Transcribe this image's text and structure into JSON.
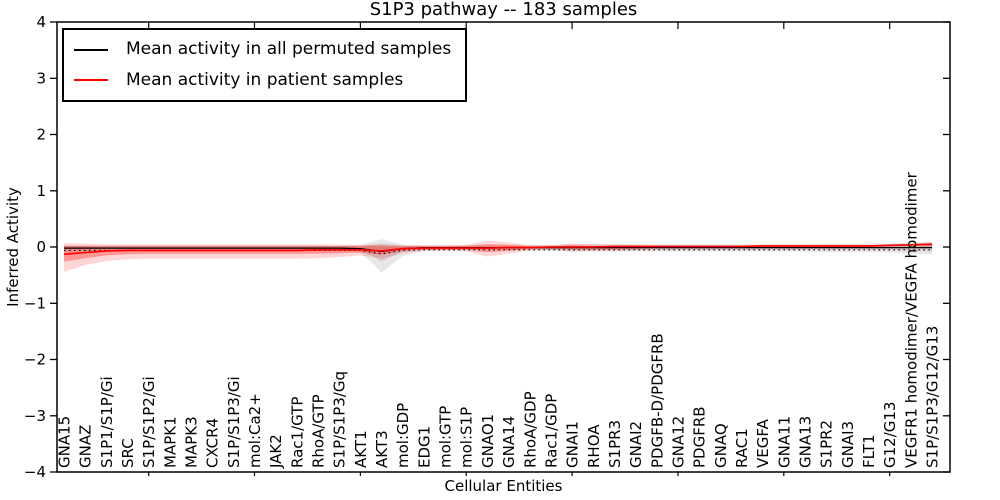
{
  "chart_data": {
    "type": "line",
    "title": "S1P3 pathway -- 183 samples",
    "xlabel": "Cellular Entities",
    "ylabel": "Inferred Activity",
    "ylim": [
      -4,
      4
    ],
    "yticks": [
      -4,
      -3,
      -2,
      -1,
      0,
      1,
      2,
      3,
      4
    ],
    "grid": false,
    "legend_position": "upper left",
    "legend": [
      "Mean activity in all permuted samples",
      "Mean activity in patient samples"
    ],
    "colors": {
      "permuted_line": "#000000",
      "patient_line": "#ff0000",
      "permuted_band": "#888888",
      "patient_band": "#ff0000"
    },
    "xtick_marks_every": 5,
    "categories": [
      "GNA15",
      "GNAZ",
      "S1P1/S1P/Gi",
      "SRC",
      "S1P/S1P2/Gi",
      "MAPK1",
      "MAPK3",
      "CXCR4",
      "S1P/S1P3/Gi",
      "mol:Ca2+",
      "JAK2",
      "Rac1/GTP",
      "RhoA/GTP",
      "S1P/S1P3/Gq",
      "AKT1",
      "AKT3",
      "mol:GDP",
      "EDG1",
      "mol:GTP",
      "mol:S1P",
      "GNAO1",
      "GNA14",
      "RhoA/GDP",
      "Rac1/GDP",
      "GNAI1",
      "RHOA",
      "S1PR3",
      "GNAI2",
      "PDGFB-D/PDGFRB",
      "GNA12",
      "PDGFRB",
      "GNAQ",
      "RAC1",
      "VEGFA",
      "GNA11",
      "GNA13",
      "S1PR2",
      "GNAI3",
      "FLT1",
      "G12/G13",
      "VEGFR1 homodimer/VEGFA homodimer",
      "S1P/S1P3/G12/G13"
    ],
    "series": [
      {
        "name": "Mean activity in all permuted samples",
        "color": "#000000",
        "style": "solid",
        "values": [
          -0.02,
          -0.02,
          -0.02,
          -0.02,
          -0.02,
          -0.02,
          -0.02,
          -0.02,
          -0.02,
          -0.02,
          -0.02,
          -0.02,
          -0.02,
          -0.02,
          -0.03,
          -0.08,
          -0.03,
          -0.01,
          -0.01,
          -0.01,
          -0.01,
          -0.01,
          -0.01,
          -0.01,
          -0.01,
          -0.01,
          -0.01,
          -0.01,
          -0.01,
          -0.01,
          -0.01,
          -0.01,
          -0.01,
          -0.01,
          -0.01,
          -0.01,
          -0.01,
          -0.01,
          -0.01,
          -0.01,
          -0.01,
          -0.01
        ]
      },
      {
        "name": "permuted dotted reference",
        "color": "#000000",
        "style": "dotted",
        "values": [
          -0.06,
          -0.06,
          -0.06,
          -0.06,
          -0.06,
          -0.06,
          -0.06,
          -0.06,
          -0.06,
          -0.06,
          -0.06,
          -0.06,
          -0.06,
          -0.06,
          -0.06,
          -0.12,
          -0.06,
          -0.05,
          -0.05,
          -0.05,
          -0.05,
          -0.05,
          -0.05,
          -0.05,
          -0.05,
          -0.05,
          -0.05,
          -0.05,
          -0.05,
          -0.05,
          -0.05,
          -0.05,
          -0.05,
          -0.05,
          -0.05,
          -0.05,
          -0.05,
          -0.05,
          -0.05,
          -0.05,
          -0.05,
          -0.05
        ]
      },
      {
        "name": "Mean activity in patient samples",
        "color": "#ff0000",
        "style": "solid",
        "values": [
          -0.13,
          -0.1,
          -0.07,
          -0.06,
          -0.06,
          -0.06,
          -0.06,
          -0.06,
          -0.06,
          -0.06,
          -0.06,
          -0.06,
          -0.05,
          -0.05,
          -0.05,
          -0.07,
          -0.03,
          -0.02,
          -0.02,
          -0.02,
          -0.02,
          -0.01,
          -0.01,
          0,
          0,
          0,
          0.01,
          0.01,
          0.01,
          0.01,
          0.01,
          0.01,
          0.01,
          0.02,
          0.02,
          0.02,
          0.02,
          0.02,
          0.02,
          0.03,
          0.04,
          0.05
        ]
      }
    ],
    "bands": [
      {
        "name": "permuted outer band",
        "color": "#888888",
        "opacity": 0.2,
        "upper": [
          0.03,
          0.02,
          0.02,
          0.02,
          0.02,
          0.02,
          0.02,
          0.02,
          0.02,
          0.02,
          0.02,
          0.02,
          0.02,
          0.02,
          0.03,
          0.14,
          0.04,
          0.03,
          0.03,
          0.03,
          0.03,
          0.03,
          0.04,
          0.04,
          0.05,
          0.05,
          0.05,
          0.05,
          0.05,
          0.05,
          0.05,
          0.05,
          0.05,
          0.05,
          0.05,
          0.05,
          0.06,
          0.06,
          0.06,
          0.07,
          0.08,
          0.09
        ],
        "lower": [
          -0.1,
          -0.08,
          -0.07,
          -0.07,
          -0.07,
          -0.07,
          -0.07,
          -0.07,
          -0.07,
          -0.07,
          -0.07,
          -0.07,
          -0.07,
          -0.07,
          -0.09,
          -0.45,
          -0.16,
          -0.07,
          -0.06,
          -0.06,
          -0.06,
          -0.06,
          -0.07,
          -0.07,
          -0.08,
          -0.08,
          -0.08,
          -0.08,
          -0.08,
          -0.08,
          -0.08,
          -0.08,
          -0.08,
          -0.08,
          -0.08,
          -0.08,
          -0.09,
          -0.09,
          -0.09,
          -0.1,
          -0.12,
          -0.13
        ]
      },
      {
        "name": "permuted inner band",
        "color": "#888888",
        "opacity": 0.22,
        "upper": [
          0.01,
          0.01,
          0.01,
          0.01,
          0.01,
          0.01,
          0.01,
          0.01,
          0.01,
          0.01,
          0.01,
          0.01,
          0.01,
          0.01,
          0.01,
          0.06,
          0.02,
          0.01,
          0.01,
          0.01,
          0.01,
          0.01,
          0.02,
          0.02,
          0.02,
          0.02,
          0.02,
          0.02,
          0.02,
          0.02,
          0.02,
          0.02,
          0.02,
          0.02,
          0.02,
          0.02,
          0.03,
          0.03,
          0.03,
          0.03,
          0.04,
          0.04
        ],
        "lower": [
          -0.05,
          -0.05,
          -0.04,
          -0.04,
          -0.04,
          -0.04,
          -0.04,
          -0.04,
          -0.04,
          -0.04,
          -0.04,
          -0.04,
          -0.04,
          -0.04,
          -0.05,
          -0.25,
          -0.08,
          -0.04,
          -0.04,
          -0.04,
          -0.04,
          -0.04,
          -0.04,
          -0.04,
          -0.05,
          -0.05,
          -0.05,
          -0.05,
          -0.05,
          -0.05,
          -0.05,
          -0.05,
          -0.05,
          -0.05,
          -0.05,
          -0.05,
          -0.05,
          -0.05,
          -0.05,
          -0.06,
          -0.07,
          -0.08
        ]
      },
      {
        "name": "patient outer band",
        "color": "#ff0000",
        "opacity": 0.16,
        "upper": [
          0.07,
          0.06,
          0.05,
          0.05,
          0.05,
          0.05,
          0.05,
          0.05,
          0.05,
          0.05,
          0.05,
          0.05,
          0.05,
          0.04,
          0.04,
          0.05,
          0.03,
          0.03,
          0.03,
          0.04,
          0.11,
          0.08,
          0.03,
          0.03,
          0.06,
          0.05,
          0.05,
          0.04,
          0.03,
          0.03,
          0.03,
          0.03,
          0.03,
          0.03,
          0.03,
          0.03,
          0.03,
          0.03,
          0.03,
          0.04,
          0.06,
          0.08
        ],
        "lower": [
          -0.44,
          -0.32,
          -0.25,
          -0.22,
          -0.21,
          -0.21,
          -0.21,
          -0.21,
          -0.21,
          -0.21,
          -0.21,
          -0.21,
          -0.2,
          -0.18,
          -0.15,
          -0.21,
          -0.11,
          -0.07,
          -0.07,
          -0.08,
          -0.17,
          -0.12,
          -0.06,
          -0.05,
          -0.08,
          -0.07,
          -0.07,
          -0.06,
          -0.04,
          -0.04,
          -0.04,
          -0.04,
          -0.04,
          -0.04,
          -0.04,
          -0.04,
          -0.03,
          -0.03,
          -0.03,
          -0.03,
          -0.03,
          -0.03
        ]
      },
      {
        "name": "patient inner band",
        "color": "#ff0000",
        "opacity": 0.3,
        "upper": [
          0.02,
          0.02,
          0.02,
          0.02,
          0.02,
          0.02,
          0.02,
          0.02,
          0.02,
          0.02,
          0.02,
          0.02,
          0.02,
          0.02,
          0.02,
          0.02,
          0.01,
          0.01,
          0.01,
          0.02,
          0.05,
          0.04,
          0.01,
          0.01,
          0.03,
          0.02,
          0.02,
          0.02,
          0.02,
          0.02,
          0.02,
          0.02,
          0.02,
          0.03,
          0.03,
          0.03,
          0.03,
          0.03,
          0.03,
          0.04,
          0.05,
          0.06
        ],
        "lower": [
          -0.26,
          -0.2,
          -0.15,
          -0.13,
          -0.12,
          -0.12,
          -0.12,
          -0.12,
          -0.12,
          -0.12,
          -0.12,
          -0.12,
          -0.12,
          -0.11,
          -0.1,
          -0.14,
          -0.07,
          -0.05,
          -0.05,
          -0.05,
          -0.09,
          -0.07,
          -0.03,
          -0.03,
          -0.04,
          -0.04,
          -0.04,
          -0.03,
          -0.02,
          -0.02,
          -0.02,
          -0.01,
          -0.01,
          0,
          0,
          0,
          0,
          0,
          0,
          0.01,
          0.02,
          0.02
        ]
      }
    ]
  }
}
